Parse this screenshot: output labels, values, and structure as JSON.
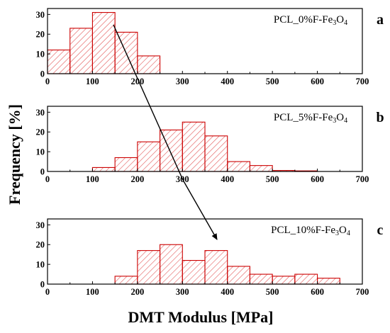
{
  "chart_data": [
    {
      "type": "bar",
      "panel": "a",
      "label_main": "PCL_0%F-Fe",
      "label_sub1": "3",
      "label_mid": "O",
      "label_sub2": "4",
      "bin_edges": [
        0,
        50,
        100,
        150,
        200,
        250
      ],
      "values": [
        12,
        23,
        31,
        21,
        9
      ],
      "xlim": [
        0,
        700
      ],
      "ylim": [
        0,
        33
      ],
      "x_ticks": [
        0,
        100,
        200,
        300,
        400,
        500,
        600,
        700
      ],
      "y_ticks": [
        0,
        10,
        20,
        30
      ]
    },
    {
      "type": "bar",
      "panel": "b",
      "label_main": "PCL_5%F-Fe",
      "label_sub1": "3",
      "label_mid": "O",
      "label_sub2": "4",
      "bin_edges": [
        100,
        150,
        200,
        250,
        300,
        350,
        400,
        450,
        500,
        550,
        600
      ],
      "values": [
        2,
        7,
        15,
        21,
        25,
        18,
        5,
        3,
        0.5,
        0.3
      ],
      "xlim": [
        0,
        700
      ],
      "ylim": [
        0,
        33
      ],
      "x_ticks": [
        0,
        100,
        200,
        300,
        400,
        500,
        600,
        700
      ],
      "y_ticks": [
        0,
        10,
        20,
        30
      ]
    },
    {
      "type": "bar",
      "panel": "c",
      "label_main": "PCL_10%F-Fe",
      "label_sub1": "3",
      "label_mid": "O",
      "label_sub2": "4",
      "bin_edges": [
        150,
        200,
        250,
        300,
        350,
        400,
        450,
        500,
        550,
        600,
        650
      ],
      "values": [
        4,
        17,
        20,
        12,
        17,
        9,
        5,
        4,
        5,
        3
      ],
      "xlim": [
        0,
        700
      ],
      "ylim": [
        0,
        33
      ],
      "x_ticks": [
        0,
        100,
        200,
        300,
        400,
        500,
        600,
        700
      ],
      "y_ticks": [
        0,
        10,
        20,
        30
      ]
    }
  ],
  "shared": {
    "ylabel": "Frequency [%]",
    "xlabel": "DMT Modulus [MPa]"
  },
  "colors": {
    "bar_edge": "#cc0000",
    "hatch": "#e35a5a",
    "axis": "#000000",
    "arrow": "#000000"
  }
}
